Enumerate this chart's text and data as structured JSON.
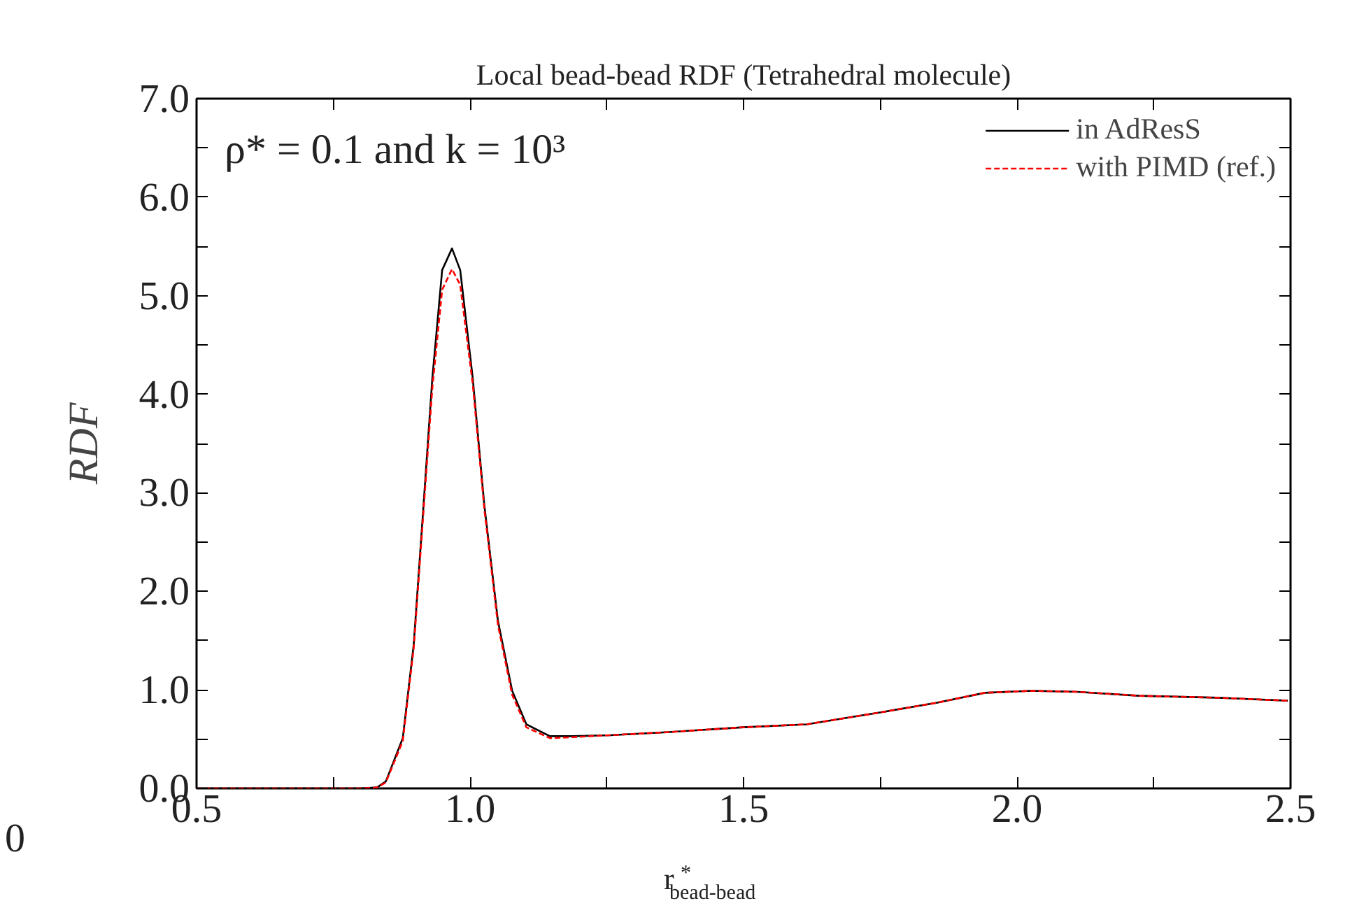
{
  "chart_data": {
    "type": "line",
    "title": "Local bead-bead RDF (Tetrahedral molecule)",
    "xlabel": "r$^{*}$$_{bead-bead}$",
    "ylabel": "RDF",
    "annotations": [
      "ρ* = 0.1 and k = 10³",
      "0"
    ],
    "xlim": [
      0.5,
      2.5
    ],
    "ylim": [
      0,
      7
    ],
    "xticks": [
      {
        "value": 0.5,
        "label": "0.5"
      },
      {
        "value": 0.75,
        "label": null
      },
      {
        "value": 1.0,
        "label": "1.0"
      },
      {
        "value": 1.25,
        "label": null
      },
      {
        "value": 1.5,
        "label": "1.5"
      },
      {
        "value": 1.75,
        "label": null
      },
      {
        "value": 2.0,
        "label": "2.0"
      },
      {
        "value": 2.25,
        "label": null
      },
      {
        "value": 2.5,
        "label": "2.5"
      }
    ],
    "yticks": [
      {
        "value": 0,
        "label": "0.0"
      },
      {
        "value": 0.5,
        "label": null
      },
      {
        "value": 1,
        "label": "1.0"
      },
      {
        "value": 1.5,
        "label": null
      },
      {
        "value": 2,
        "label": "2.0"
      },
      {
        "value": 2.5,
        "label": null
      },
      {
        "value": 3,
        "label": "3.0"
      },
      {
        "value": 3.5,
        "label": null
      },
      {
        "value": 4,
        "label": "4.0"
      },
      {
        "value": 4.5,
        "label": null
      },
      {
        "value": 5,
        "label": "5.0"
      },
      {
        "value": 5.5,
        "label": null
      },
      {
        "value": 6,
        "label": "6.0"
      },
      {
        "value": 6.5,
        "label": null
      },
      {
        "value": 7,
        "label": "7.0"
      }
    ],
    "grid": false,
    "legend": "top right",
    "x": [
      0.5,
      0.7,
      0.8,
      0.83,
      0.846,
      0.877,
      0.897,
      0.915,
      0.931,
      0.949,
      0.967,
      0.982,
      1.005,
      1.026,
      1.051,
      1.077,
      1.103,
      1.146,
      1.187,
      1.256,
      1.359,
      1.5,
      1.615,
      1.749,
      1.854,
      1.941,
      2.026,
      2.11,
      2.223,
      2.367,
      2.495
    ],
    "series": [
      {
        "name": "in AdResS",
        "color": "#000000",
        "line_style": "solid",
        "values": [
          0,
          0,
          0,
          0.01,
          0.07,
          0.51,
          1.46,
          2.88,
          4.16,
          5.26,
          5.48,
          5.26,
          4.16,
          2.88,
          1.7,
          0.99,
          0.65,
          0.53,
          0.53,
          0.54,
          0.57,
          0.62,
          0.65,
          0.77,
          0.87,
          0.97,
          0.99,
          0.98,
          0.94,
          0.92,
          0.89
        ]
      },
      {
        "name": "with PIMD (ref.)",
        "color": "#ff0000",
        "line_style": "dashed",
        "values": [
          0,
          0,
          0,
          0.01,
          0.06,
          0.48,
          1.42,
          2.82,
          4.06,
          5.06,
          5.27,
          5.11,
          4.1,
          2.84,
          1.66,
          0.95,
          0.62,
          0.51,
          0.52,
          0.54,
          0.57,
          0.62,
          0.65,
          0.77,
          0.87,
          0.97,
          0.99,
          0.98,
          0.94,
          0.92,
          0.89
        ]
      }
    ]
  }
}
